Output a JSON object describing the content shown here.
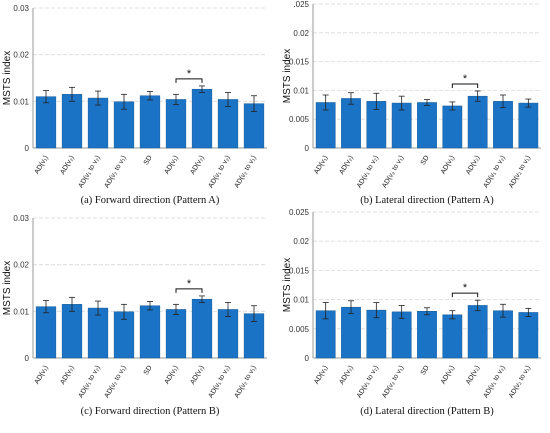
{
  "colors": {
    "bar": "#1a73c4",
    "bar_edge": "#135a9c",
    "grid": "#d9d9d9",
    "axis": "#999999",
    "err": "#222222"
  },
  "chart_data": [
    {
      "type": "bar",
      "caption": "(a) Forward direction (Pattern A)",
      "ylabel": "MSTS index",
      "ylim": [
        0,
        0.03
      ],
      "yticks": [
        "0",
        "0.01",
        "0.02",
        "0.03"
      ],
      "categories": [
        "AD(v₁)",
        "AD(v₂)",
        "AD(v₁ to v₂)",
        "AD(v₂ to v₁)",
        "SD",
        "AD(v₁)",
        "AD(v₂)",
        "AD(v₁ to v₂)",
        "AD(v₂ to v₁)"
      ],
      "values": [
        0.011,
        0.0115,
        0.0107,
        0.0099,
        0.0112,
        0.0104,
        0.0126,
        0.0104,
        0.0095
      ],
      "errors": [
        0.0013,
        0.0015,
        0.0015,
        0.0016,
        0.0009,
        0.0011,
        0.0007,
        0.0015,
        0.0017
      ],
      "significance": {
        "from": 5,
        "to": 6,
        "label": "*"
      },
      "grid": true
    },
    {
      "type": "bar",
      "caption": "(b) Lateral direction (Pattern A)",
      "ylabel": "MSTS index",
      "ylim": [
        0,
        0.025
      ],
      "yticks": [
        "0",
        "0.005",
        "0.01",
        "0.015",
        "0.02",
        ".025"
      ],
      "categories": [
        "AD(v₁)",
        "AD(v₂)",
        "AD(v₁ to v₂)",
        "AD(v₂ to v₁)",
        "SD",
        "AD(v₁)",
        "AD(v₂)",
        "AD(v₁ to v₂)",
        "AD(v₂ to v₁)"
      ],
      "values": [
        0.0079,
        0.0086,
        0.0081,
        0.0078,
        0.0079,
        0.0073,
        0.009,
        0.0081,
        0.0078
      ],
      "errors": [
        0.0013,
        0.001,
        0.0014,
        0.0012,
        0.0005,
        0.0007,
        0.0009,
        0.0011,
        0.0007
      ],
      "significance": {
        "from": 5,
        "to": 6,
        "label": "*"
      },
      "grid": true
    },
    {
      "type": "bar",
      "caption": "(c) Forward direction (Pattern B)",
      "ylabel": "MSTS index",
      "ylim": [
        0,
        0.03
      ],
      "yticks": [
        "0",
        "0.01",
        "0.02",
        "0.03"
      ],
      "categories": [
        "AD(v₁)",
        "AD(v₂)",
        "AD(v₁ to v₂)",
        "AD(v₂ to v₁)",
        "SD",
        "AD(v₁)",
        "AD(v₂)",
        "AD(v₁ to v₂)",
        "AD(v₂ to v₁)"
      ],
      "values": [
        0.011,
        0.0115,
        0.0107,
        0.0099,
        0.0112,
        0.0104,
        0.0126,
        0.0104,
        0.0095
      ],
      "errors": [
        0.0013,
        0.0015,
        0.0015,
        0.0016,
        0.0009,
        0.0011,
        0.0007,
        0.0015,
        0.0017
      ],
      "significance": {
        "from": 5,
        "to": 6,
        "label": "*"
      },
      "grid": true
    },
    {
      "type": "bar",
      "caption": "(d) Lateral direction (Pattern B)",
      "ylabel": "MSTS index",
      "ylim": [
        0,
        0.025
      ],
      "yticks": [
        "0",
        "0.005",
        "0.01",
        "0.015",
        "0.02",
        "0.025"
      ],
      "categories": [
        "AD(v₁)",
        "AD(v₂)",
        "AD(v₁ to v₂)",
        "AD(v₂ to v₁)",
        "SD",
        "AD(v₁)",
        "AD(v₂)",
        "AD(v₁ to v₂)",
        "AD(v₂ to v₁)"
      ],
      "values": [
        0.0081,
        0.0087,
        0.0082,
        0.0079,
        0.008,
        0.0074,
        0.009,
        0.0081,
        0.0078
      ],
      "errors": [
        0.0014,
        0.0011,
        0.0013,
        0.0011,
        0.0006,
        0.0007,
        0.0009,
        0.0011,
        0.0007
      ],
      "significance": {
        "from": 5,
        "to": 6,
        "label": "*"
      },
      "grid": true
    }
  ]
}
